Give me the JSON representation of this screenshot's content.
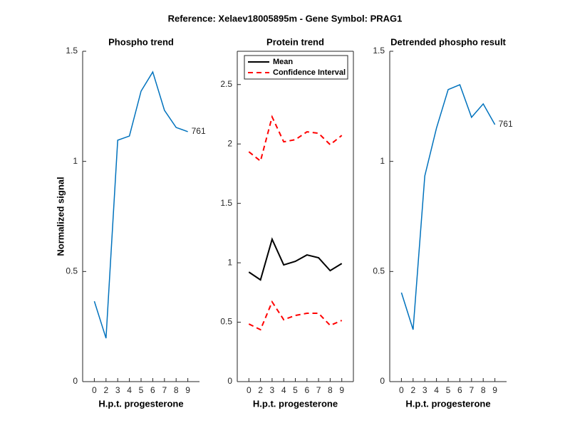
{
  "title": "Reference:  Xelaev18005895m - Gene Symbol:  PRAG1",
  "chart_data": [
    {
      "type": "line",
      "title": "Phospho trend",
      "xlabel": "H.p.t. progesterone",
      "ylabel": "Normalized signal",
      "categories": [
        "0",
        "2",
        "3",
        "4",
        "5",
        "6",
        "7",
        "8",
        "9"
      ],
      "series": [
        {
          "name": "761",
          "color": "#0072bd",
          "values": [
            0.365,
            0.197,
            1.096,
            1.115,
            1.319,
            1.406,
            1.232,
            1.154,
            1.135
          ]
        }
      ],
      "ylim": [
        0,
        1.5
      ],
      "yticks": [
        0,
        0.5,
        1,
        1.5
      ]
    },
    {
      "type": "line",
      "title": "Protein trend",
      "xlabel": "H.p.t. progesterone",
      "categories": [
        "0",
        "2",
        "3",
        "4",
        "5",
        "6",
        "7",
        "8",
        "9"
      ],
      "series": [
        {
          "name": "Mean",
          "color": "#000000",
          "values": [
            0.922,
            0.856,
            1.198,
            0.982,
            1.012,
            1.066,
            1.042,
            0.934,
            0.994
          ]
        },
        {
          "name": "Confidence Interval",
          "color": "#ff0000",
          "dashed": true,
          "upper": [
            1.934,
            1.856,
            2.228,
            2.018,
            2.036,
            2.102,
            2.09,
            1.994,
            2.072
          ],
          "lower": [
            0.485,
            0.437,
            0.671,
            0.521,
            0.557,
            0.575,
            0.575,
            0.473,
            0.515
          ]
        }
      ],
      "legend": "top-left",
      "box": true,
      "ylim": [
        0,
        2.78
      ],
      "yticks": [
        0,
        0.5,
        1,
        1.5,
        2,
        2.5
      ]
    },
    {
      "type": "line",
      "title": "Detrended phospho result",
      "xlabel": "H.p.t. progesterone",
      "categories": [
        "0",
        "2",
        "3",
        "4",
        "5",
        "6",
        "7",
        "8",
        "9"
      ],
      "series": [
        {
          "name": "761",
          "color": "#0072bd",
          "values": [
            0.404,
            0.236,
            0.934,
            1.151,
            1.326,
            1.348,
            1.2,
            1.261,
            1.167
          ]
        }
      ],
      "ylim": [
        0,
        1.5
      ],
      "yticks": [
        0,
        0.5,
        1,
        1.5
      ]
    }
  ]
}
